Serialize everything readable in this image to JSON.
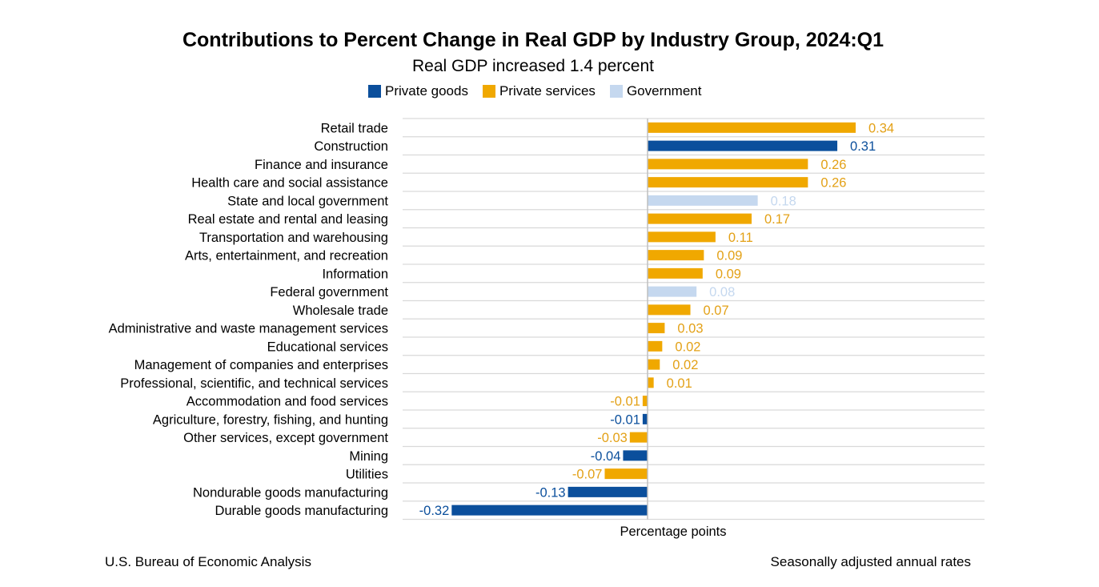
{
  "chart_data": {
    "type": "bar",
    "orientation": "horizontal",
    "title": "Contributions to Percent Change in Real GDP by Industry Group, 2024:Q1",
    "subtitle": "Real GDP increased 1.4 percent",
    "xlabel": "Percentage points",
    "legend_position": "top",
    "grid": true,
    "xlim": [
      -0.4,
      0.44
    ],
    "series_colors": {
      "Private goods": "#0b4f9c",
      "Private services": "#f0a800",
      "Government": "#c5d8ef"
    },
    "legend": [
      "Private goods",
      "Private services",
      "Government"
    ],
    "categories": [
      "Retail trade",
      "Construction",
      "Finance and insurance",
      "Health care and social assistance",
      "State and local government",
      "Real estate and rental and leasing",
      "Transportation and warehousing",
      "Arts, entertainment, and recreation",
      "Information",
      "Federal government",
      "Wholesale trade",
      "Administrative and waste management services",
      "Educational services",
      "Management of companies and enterprises",
      "Professional, scientific, and technical services",
      "Accommodation and food services",
      "Agriculture, forestry, fishing, and hunting",
      "Other services, except government",
      "Mining",
      "Utilities",
      "Nondurable goods manufacturing",
      "Durable goods manufacturing"
    ],
    "values": [
      0.34,
      0.31,
      0.26,
      0.26,
      0.18,
      0.17,
      0.11,
      0.09,
      0.09,
      0.08,
      0.07,
      0.03,
      0.02,
      0.02,
      0.01,
      -0.01,
      -0.01,
      -0.03,
      -0.04,
      -0.07,
      -0.13,
      -0.32
    ],
    "value_labels": [
      "0.34",
      "0.31",
      "0.26",
      "0.26",
      "0.18",
      "0.17",
      "0.11",
      "0.09",
      "0.09",
      "0.08",
      "0.07",
      "0.03",
      "0.02",
      "0.02",
      "0.01",
      "-0.01",
      "-0.01",
      "-0.03",
      "-0.04",
      "-0.07",
      "-0.13",
      "-0.32"
    ],
    "bar_values_visual": [
      0.34,
      0.31,
      0.262,
      0.262,
      0.18,
      0.17,
      0.111,
      0.092,
      0.09,
      0.08,
      0.07,
      0.028,
      0.024,
      0.02,
      0.01,
      -0.008,
      -0.008,
      -0.029,
      -0.04,
      -0.07,
      -0.13,
      -0.32
    ],
    "groups": [
      "Private services",
      "Private goods",
      "Private services",
      "Private services",
      "Government",
      "Private services",
      "Private services",
      "Private services",
      "Private services",
      "Government",
      "Private services",
      "Private services",
      "Private services",
      "Private services",
      "Private services",
      "Private services",
      "Private goods",
      "Private services",
      "Private goods",
      "Private services",
      "Private goods",
      "Private goods"
    ]
  },
  "footer": {
    "source": "U.S. Bureau of Economic Analysis",
    "note": "Seasonally adjusted annual rates"
  }
}
